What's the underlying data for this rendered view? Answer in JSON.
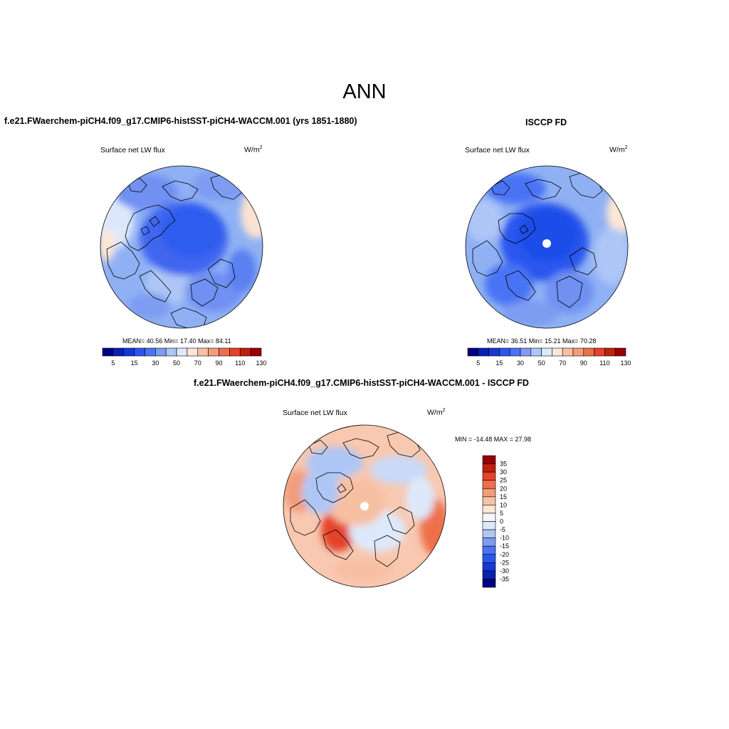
{
  "page": {
    "title": "ANN"
  },
  "panels": [
    {
      "id": "model",
      "title": "f.e21.FWaerchem-piCH4.f09_g17.CMIP6-histSST-piCH4-WACCM.001 (yrs 1851-1880)",
      "variable": "Surface net LW flux",
      "units": "W/m",
      "units_exp": "2",
      "stats_label": "MEAN=  40.56  Min=  17.40  Max=  84.11",
      "stats": {
        "mean": 40.56,
        "min": 17.4,
        "max": 84.11
      }
    },
    {
      "id": "obs",
      "title": "ISCCP FD",
      "variable": "Surface net LW flux",
      "units": "W/m",
      "units_exp": "2",
      "stats_label": "MEAN=  36.51  Min=  15.21  Max=  70.28",
      "stats": {
        "mean": 36.51,
        "min": 15.21,
        "max": 70.28
      }
    },
    {
      "id": "diff",
      "title": "f.e21.FWaerchem-piCH4.f09_g17.CMIP6-histSST-piCH4-WACCM.001 - ISCCP FD",
      "variable": "Surface net LW flux",
      "units": "W/m",
      "units_exp": "2",
      "stats_label": "MIN = -14.48 MAX =  27.98",
      "stats": {
        "min": -14.48,
        "max": 27.98
      }
    }
  ],
  "colorbar_abs": {
    "labels": [
      "5",
      "15",
      "30",
      "50",
      "70",
      "90",
      "110",
      "130"
    ],
    "colors": [
      "#000080",
      "#0a1fb3",
      "#1638d6",
      "#2a56ee",
      "#4a73f5",
      "#7d9cf2",
      "#aec6f6",
      "#dde9fb",
      "#fde6d6",
      "#f8c0a3",
      "#f29d7c",
      "#ee6f4c",
      "#e5432a",
      "#c1200e",
      "#960000"
    ]
  },
  "colorbar_diff": {
    "labels": [
      "35",
      "30",
      "25",
      "20",
      "15",
      "10",
      "5",
      "0",
      "-5",
      "-10",
      "-15",
      "-20",
      "-25",
      "-30",
      "-35"
    ],
    "colors": [
      "#960000",
      "#c1200e",
      "#e5432a",
      "#ee6f4c",
      "#f29d7c",
      "#f8c0a3",
      "#fde6d6",
      "#f4f7fd",
      "#dde9fb",
      "#aec6f6",
      "#7d9cf2",
      "#4a73f5",
      "#2a56ee",
      "#1638d6",
      "#0a1fb3",
      "#000080"
    ]
  }
}
